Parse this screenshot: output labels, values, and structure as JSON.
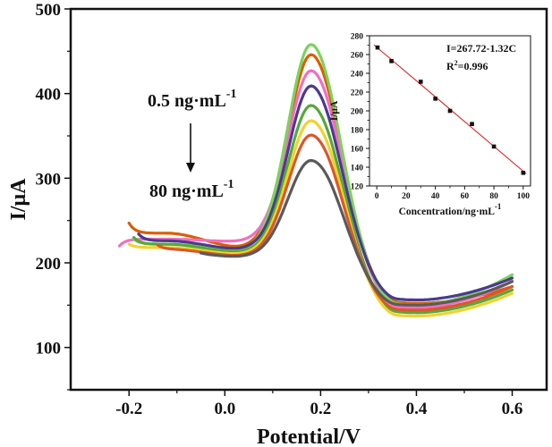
{
  "chart_data": [
    {
      "type": "line",
      "xlabel": "Potential/V",
      "ylabel": "I/μA",
      "xlim": [
        -0.32,
        0.67
      ],
      "ylim": [
        50,
        500
      ],
      "xticks": [
        -0.2,
        0.0,
        0.2,
        0.4,
        0.6
      ],
      "xtick_labels": [
        "-0.2",
        "0.0",
        "0.2",
        "0.4",
        "0.6"
      ],
      "yticks": [
        100,
        200,
        300,
        400,
        500
      ],
      "ytick_labels": [
        "100",
        "200",
        "300",
        "400",
        "500"
      ],
      "grid": false,
      "legend": "none",
      "annotations": {
        "top_label": "0.5 ng·mL",
        "top_exp": "-1",
        "bottom_label": "80 ng·mL",
        "bottom_exp": "-1"
      },
      "series": [
        {
          "color": "#d95f02",
          "start_x": -0.2,
          "start_y": 247,
          "plateau": 235,
          "dip_y": 218,
          "peak": 446,
          "valley": 152,
          "end_x": 0.6,
          "end_y": 172
        },
        {
          "color": "#f16fc1",
          "start_x": -0.22,
          "start_y": 220,
          "plateau": 228,
          "dip_y": 225,
          "peak": 427,
          "valley": 147,
          "end_x": 0.6,
          "end_y": 178
        },
        {
          "color": "#7cd35c",
          "start_x": -0.19,
          "start_y": 228,
          "plateau": 222,
          "dip_y": 214,
          "peak": 458,
          "valley": 150,
          "end_x": 0.6,
          "end_y": 186
        },
        {
          "color": "#4a3b8f",
          "start_x": -0.18,
          "start_y": 234,
          "plateau": 226,
          "dip_y": 216,
          "peak": 409,
          "valley": 156,
          "end_x": 0.6,
          "end_y": 182
        },
        {
          "color": "#56a83a",
          "start_x": -0.19,
          "start_y": 230,
          "plateau": 222,
          "dip_y": 212,
          "peak": 386,
          "valley": 141,
          "end_x": 0.6,
          "end_y": 168
        },
        {
          "color": "#f2d22e",
          "start_x": -0.2,
          "start_y": 222,
          "plateau": 218,
          "dip_y": 210,
          "peak": 368,
          "valley": 137,
          "end_x": 0.6,
          "end_y": 164
        },
        {
          "color": "#d9582b",
          "start_x": -0.14,
          "start_y": 221,
          "plateau": 216,
          "dip_y": 208,
          "peak": 351,
          "valley": 144,
          "end_x": 0.6,
          "end_y": 172
        },
        {
          "color": "#5a5a5a",
          "start_x": -0.05,
          "start_y": 214,
          "plateau": 213,
          "dip_y": 207,
          "peak": 321,
          "valley": 150,
          "end_x": 0.6,
          "end_y": 178
        }
      ]
    },
    {
      "type": "scatter",
      "xlabel": "Concentration/ng·mL",
      "xlabel_exp": "-1",
      "ylabel": "I/μA",
      "xlim": [
        -5,
        105
      ],
      "ylim": [
        120,
        280
      ],
      "xticks": [
        0,
        20,
        40,
        60,
        80,
        100
      ],
      "xtick_labels": [
        "0",
        "20",
        "40",
        "60",
        "80",
        "100"
      ],
      "yticks": [
        120,
        140,
        160,
        180,
        200,
        220,
        240,
        260,
        280
      ],
      "ytick_labels": [
        "120",
        "140",
        "160",
        "180",
        "200",
        "220",
        "240",
        "260",
        "280"
      ],
      "grid": false,
      "points": [
        {
          "x": 0.5,
          "y": 267.5
        },
        {
          "x": 10,
          "y": 253
        },
        {
          "x": 30,
          "y": 231
        },
        {
          "x": 40,
          "y": 213
        },
        {
          "x": 50,
          "y": 200
        },
        {
          "x": 65,
          "y": 186
        },
        {
          "x": 80,
          "y": 162
        },
        {
          "x": 100,
          "y": 134
        }
      ],
      "fit": {
        "intercept": 267.72,
        "slope": -1.32,
        "color": "#e02020"
      },
      "equation": "I=267.72-1.32C",
      "r2_prefix": "R",
      "r2_exp": "2",
      "r2_value": "=0.996"
    }
  ]
}
